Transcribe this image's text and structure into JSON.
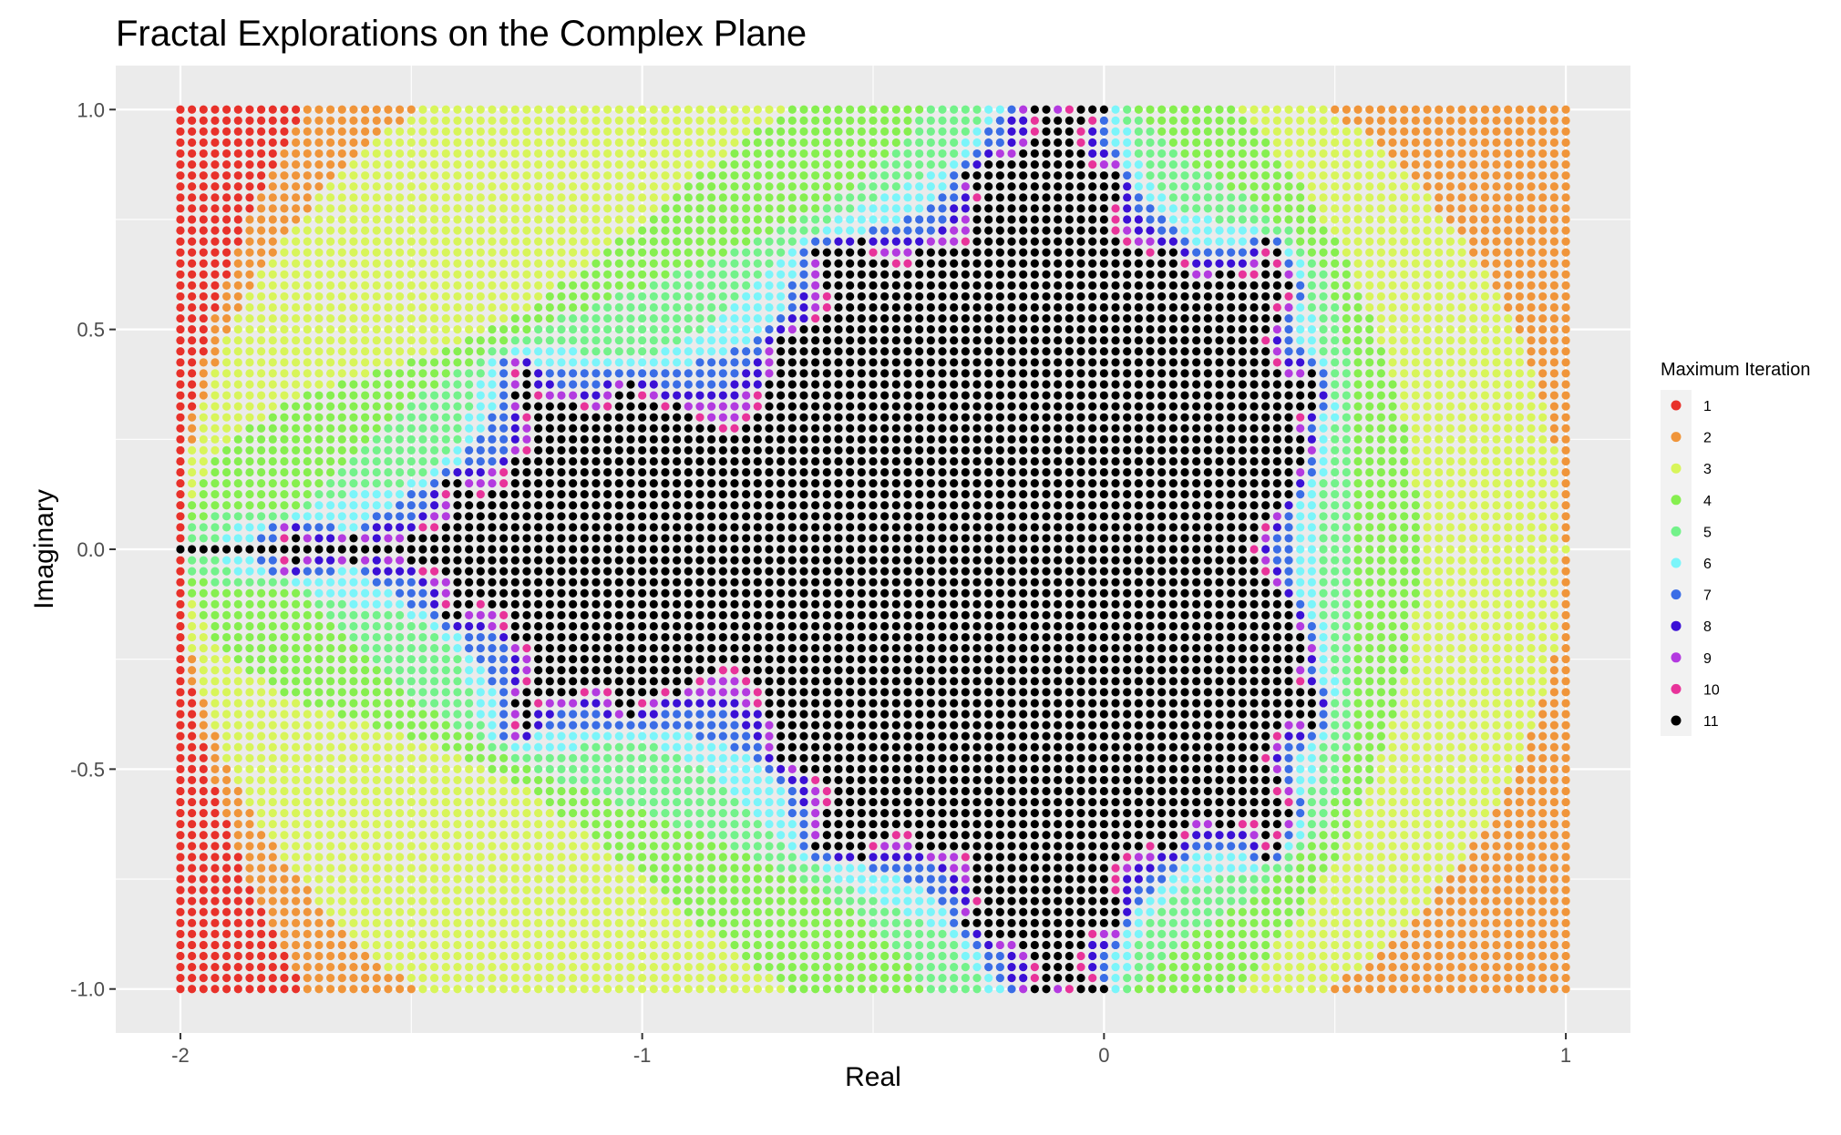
{
  "chart_data": {
    "type": "scatter",
    "title": "Fractal Explorations on the Complex Plane",
    "xlabel": "Real",
    "ylabel": "Imaginary",
    "xlim": [
      -2.14,
      1.14
    ],
    "ylim": [
      -1.1,
      1.1
    ],
    "x_ticks": [
      -2,
      -1,
      0,
      1
    ],
    "x_tick_labels": [
      "-2",
      "-1",
      "0",
      "1"
    ],
    "y_ticks": [
      -1.0,
      -0.5,
      0.0,
      0.5,
      1.0
    ],
    "y_tick_labels": [
      "-1.0",
      "-0.5",
      "0.0",
      "0.5",
      "1.0"
    ],
    "grid": true,
    "legend_position": "right",
    "legend": {
      "title": "Maximum Iteration",
      "levels": [
        "1",
        "2",
        "3",
        "4",
        "5",
        "6",
        "7",
        "8",
        "9",
        "10",
        "11"
      ],
      "colors": [
        "#e8312a",
        "#f0953a",
        "#d8f55a",
        "#86ef4f",
        "#73f28a",
        "#7bf5fa",
        "#3a6de6",
        "#3b10d6",
        "#b33ae0",
        "#e8339a",
        "#000000"
      ]
    },
    "grid_points": {
      "x_range": [
        -2,
        1
      ],
      "y_range": [
        -1,
        1
      ],
      "x_step": 0.025,
      "y_step": 0.025,
      "max_iterations": 11,
      "escape_radius": 2,
      "map": "z -> z^2 + c"
    }
  }
}
